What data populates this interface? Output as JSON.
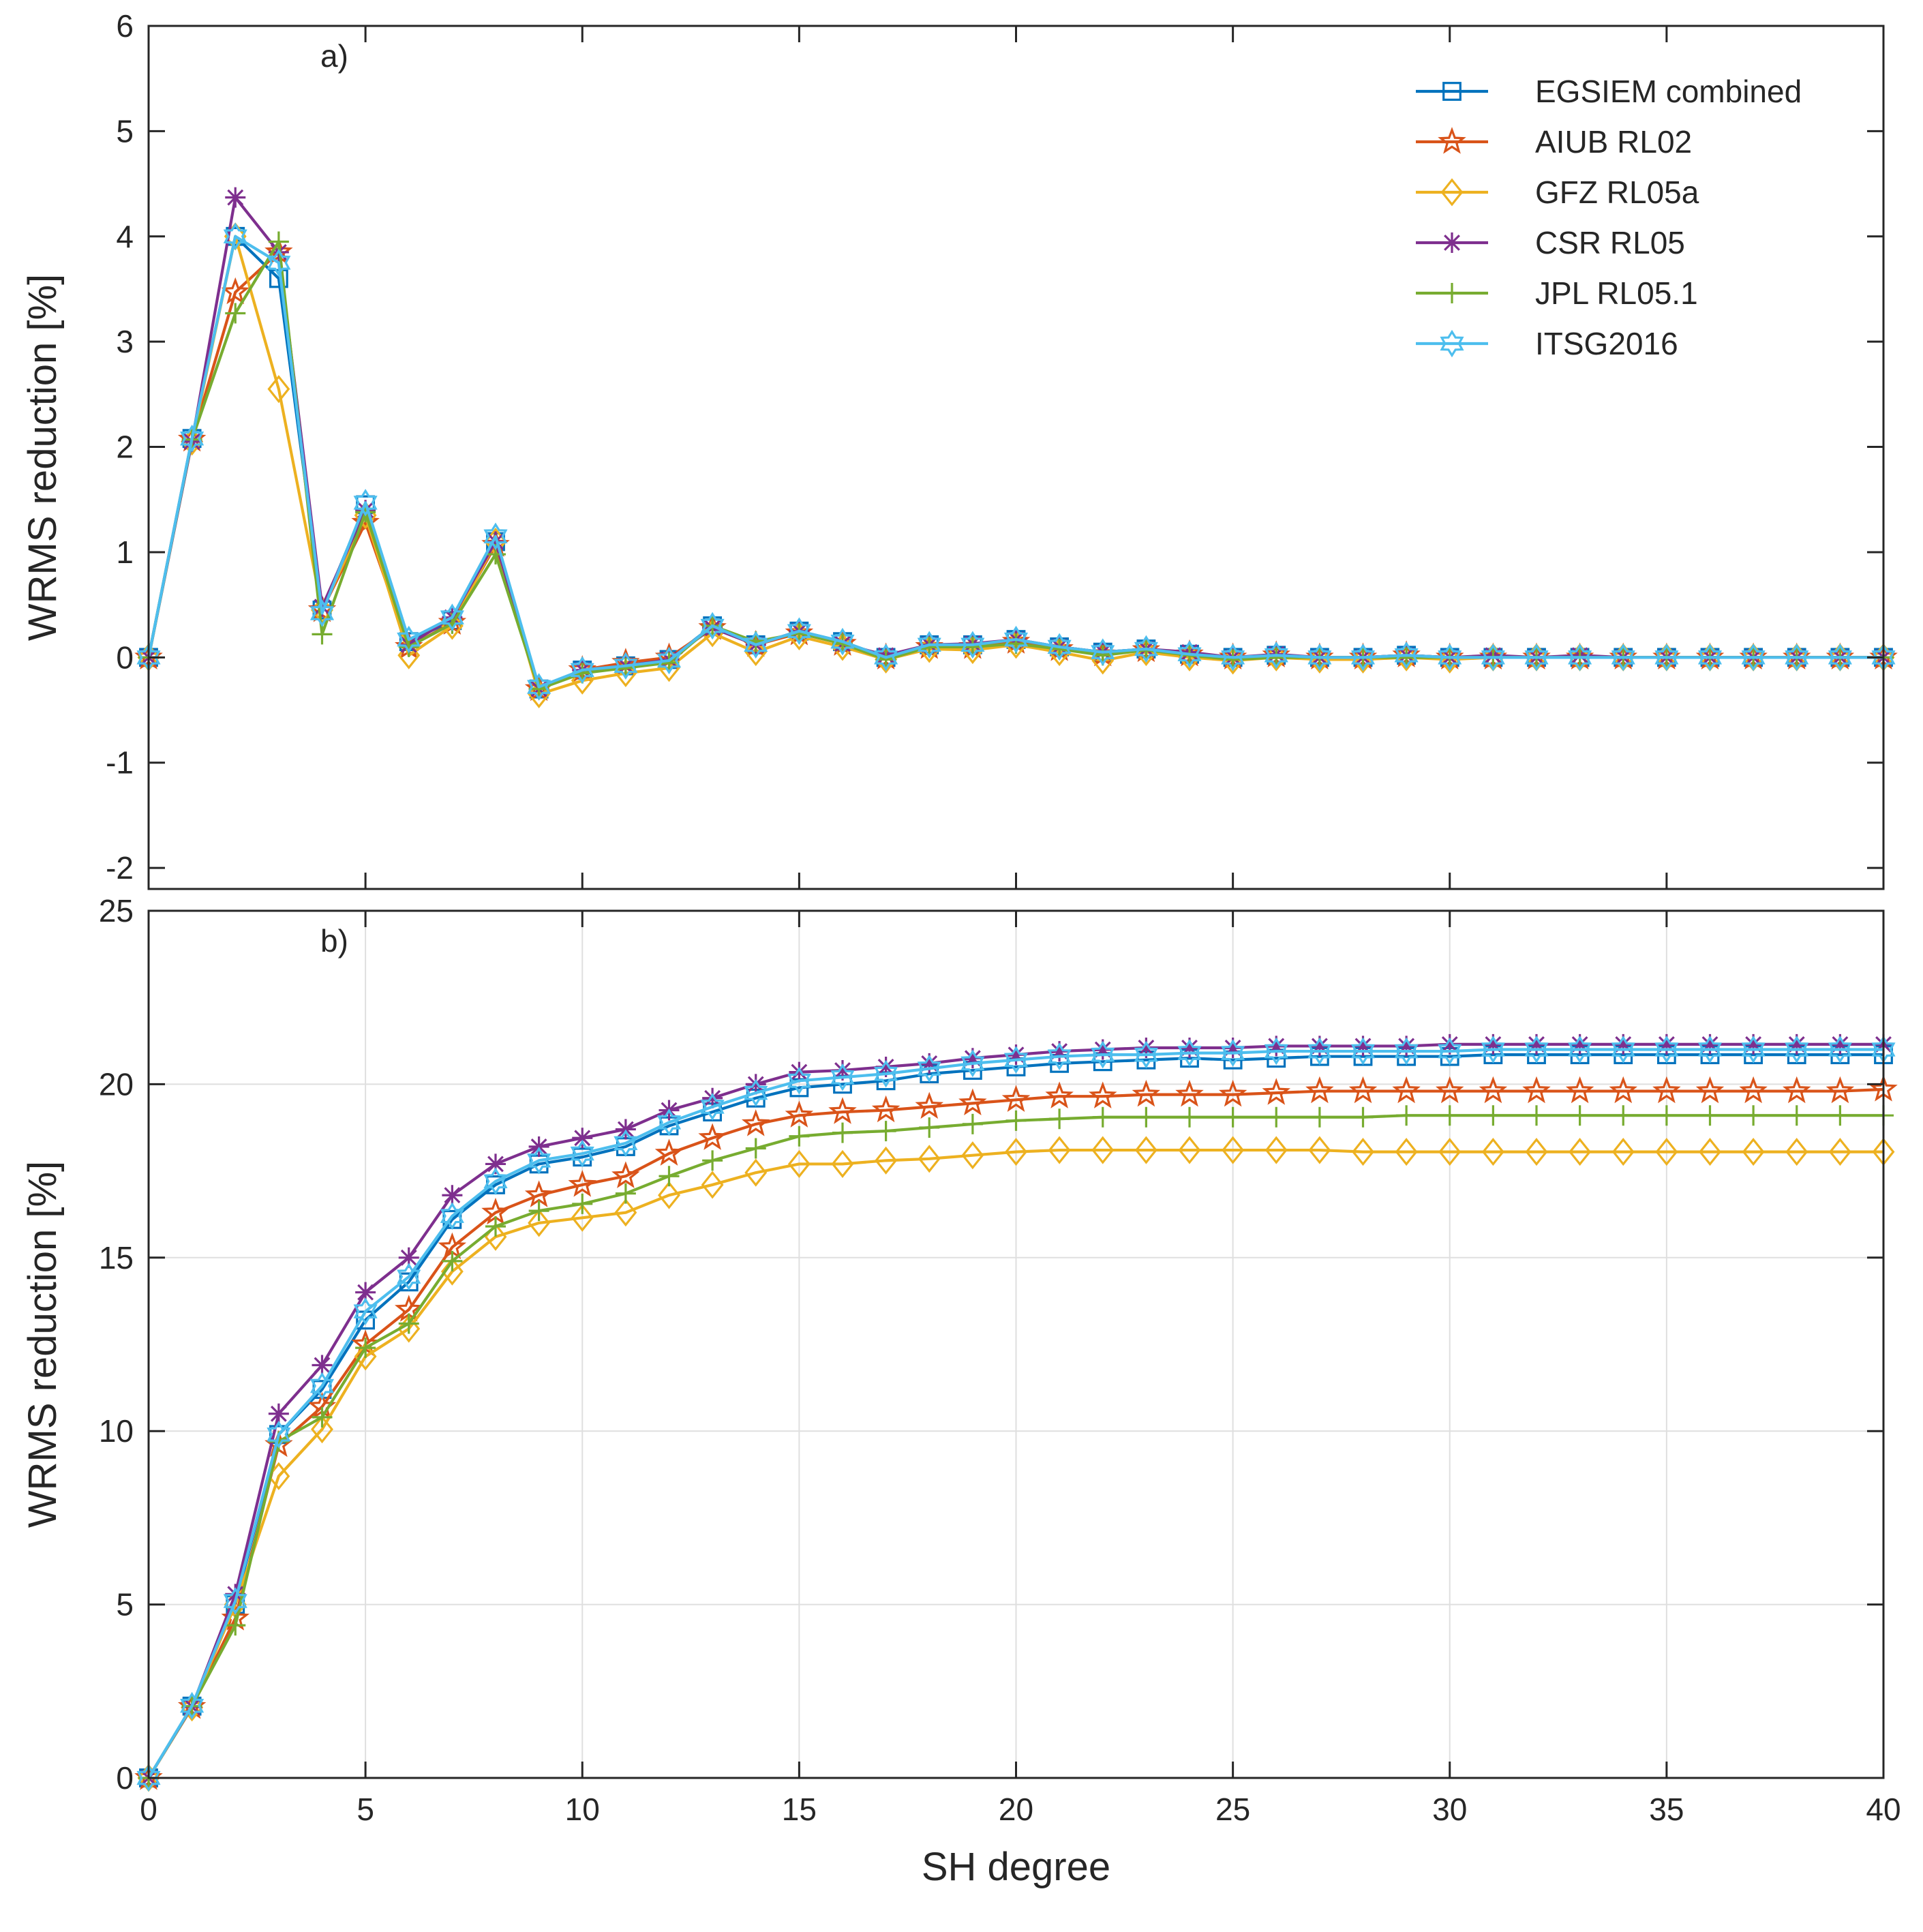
{
  "chart_data": [
    {
      "type": "line",
      "panel_label": "a)",
      "title": "",
      "xlabel": "",
      "ylabel": "WRMS reduction [%]",
      "xlim": [
        0,
        40
      ],
      "ylim": [
        -2.2,
        6
      ],
      "xticks": [
        0,
        5,
        10,
        15,
        20,
        25,
        30,
        35,
        40
      ],
      "xtick_labels": [
        "0",
        "5",
        "10",
        "15",
        "20",
        "25",
        "30",
        "35",
        "40"
      ],
      "show_xtick_labels": false,
      "yticks": [
        -2,
        -1,
        0,
        1,
        2,
        3,
        4,
        5,
        6
      ],
      "ytick_labels": [
        "-2",
        "-1",
        "0",
        "1",
        "2",
        "3",
        "4",
        "5",
        "6"
      ],
      "grid": false,
      "legend": {
        "position": "top-right",
        "entries": [
          "EGSIEM combined",
          "AIUB RL02",
          "GFZ RL05a",
          "CSR RL05",
          "JPL RL05.1",
          "ITSG2016"
        ]
      },
      "x": [
        0,
        1,
        2,
        3,
        4,
        5,
        6,
        7,
        8,
        9,
        10,
        11,
        12,
        13,
        14,
        15,
        16,
        17,
        18,
        19,
        20,
        21,
        22,
        23,
        24,
        25,
        26,
        27,
        28,
        29,
        30,
        31,
        32,
        33,
        34,
        35,
        36,
        37,
        38,
        39,
        40
      ],
      "series": [
        {
          "name": "EGSIEM combined",
          "color": "#0072BD",
          "marker": "square",
          "values": [
            0,
            2.08,
            4.0,
            3.6,
            0.45,
            1.45,
            0.15,
            0.35,
            1.1,
            -0.3,
            -0.12,
            -0.08,
            -0.02,
            0.3,
            0.12,
            0.25,
            0.15,
            0.0,
            0.12,
            0.12,
            0.17,
            0.1,
            0.05,
            0.08,
            0.03,
            0.0,
            0.02,
            0.0,
            0.0,
            0.02,
            0.0,
            0.0,
            0.0,
            0.0,
            0.0,
            0.0,
            0.0,
            0.0,
            0.0,
            0.0,
            0.0
          ]
        },
        {
          "name": "AIUB RL02",
          "color": "#D95319",
          "marker": "star",
          "values": [
            0,
            2.07,
            3.47,
            3.85,
            0.45,
            1.28,
            0.1,
            0.33,
            1.07,
            -0.3,
            -0.12,
            -0.05,
            0.0,
            0.28,
            0.12,
            0.23,
            0.13,
            0.0,
            0.1,
            0.1,
            0.15,
            0.08,
            0.03,
            0.07,
            0.03,
            0.0,
            0.02,
            0.0,
            0.0,
            0.02,
            0.0,
            0.0,
            0.0,
            0.0,
            0.0,
            0.0,
            0.0,
            0.0,
            0.0,
            0.0,
            0.0
          ]
        },
        {
          "name": "GFZ RL05a",
          "color": "#EDB120",
          "marker": "diamond",
          "values": [
            0,
            2.05,
            4.0,
            2.55,
            0.45,
            1.35,
            0.02,
            0.3,
            1.1,
            -0.35,
            -0.22,
            -0.15,
            -0.1,
            0.23,
            0.05,
            0.2,
            0.1,
            -0.02,
            0.08,
            0.07,
            0.12,
            0.05,
            -0.03,
            0.05,
            0.0,
            -0.03,
            0.0,
            -0.02,
            -0.02,
            0.0,
            -0.02,
            0.0,
            0.0,
            0.0,
            0.0,
            0.0,
            0.0,
            0.0,
            0.0,
            0.0,
            0.0
          ]
        },
        {
          "name": "CSR RL05",
          "color": "#7E2F8E",
          "marker": "asterisk",
          "values": [
            0,
            2.05,
            4.37,
            3.85,
            0.48,
            1.4,
            0.12,
            0.38,
            1.1,
            -0.3,
            -0.12,
            -0.08,
            -0.02,
            0.28,
            0.12,
            0.25,
            0.13,
            0.02,
            0.12,
            0.13,
            0.17,
            0.1,
            0.05,
            0.08,
            0.05,
            0.0,
            0.03,
            0.0,
            0.0,
            0.02,
            0.0,
            0.02,
            0.0,
            0.02,
            0.0,
            0.0,
            0.0,
            0.0,
            0.0,
            0.0,
            0.0
          ]
        },
        {
          "name": "JPL RL05.1",
          "color": "#77AC30",
          "marker": "plus",
          "values": [
            0,
            2.07,
            3.27,
            3.95,
            0.22,
            1.38,
            0.1,
            0.32,
            0.98,
            -0.3,
            -0.15,
            -0.1,
            -0.05,
            0.3,
            0.15,
            0.23,
            0.13,
            -0.02,
            0.1,
            0.1,
            0.13,
            0.08,
            0.02,
            0.07,
            0.02,
            -0.02,
            0.0,
            0.0,
            0.0,
            0.0,
            0.0,
            0.0,
            0.0,
            0.0,
            0.0,
            0.0,
            0.0,
            0.0,
            0.0,
            0.0,
            0.0
          ]
        },
        {
          "name": "ITSG2016",
          "color": "#4DBEEE",
          "marker": "hexagram",
          "values": [
            0,
            2.08,
            4.0,
            3.75,
            0.42,
            1.47,
            0.17,
            0.38,
            1.15,
            -0.28,
            -0.12,
            -0.08,
            -0.03,
            0.3,
            0.12,
            0.25,
            0.15,
            0.0,
            0.12,
            0.12,
            0.17,
            0.1,
            0.05,
            0.08,
            0.03,
            0.0,
            0.02,
            0.0,
            0.0,
            0.02,
            0.0,
            0.0,
            0.0,
            0.0,
            0.0,
            0.0,
            0.0,
            0.0,
            0.0,
            0.0,
            0.0
          ]
        }
      ]
    },
    {
      "type": "line",
      "panel_label": "b)",
      "title": "",
      "xlabel": "SH degree",
      "ylabel": "WRMS reduction [%]",
      "xlim": [
        0,
        40
      ],
      "ylim": [
        0,
        25
      ],
      "xticks": [
        0,
        5,
        10,
        15,
        20,
        25,
        30,
        35,
        40
      ],
      "xtick_labels": [
        "0",
        "5",
        "10",
        "15",
        "20",
        "25",
        "30",
        "35",
        "40"
      ],
      "show_xtick_labels": true,
      "yticks": [
        0,
        5,
        10,
        15,
        20,
        25
      ],
      "ytick_labels": [
        "0",
        "5",
        "10",
        "15",
        "20",
        "25"
      ],
      "grid": true,
      "x": [
        0,
        1,
        2,
        3,
        4,
        5,
        6,
        7,
        8,
        9,
        10,
        11,
        12,
        13,
        14,
        15,
        16,
        17,
        18,
        19,
        20,
        21,
        22,
        23,
        24,
        25,
        26,
        27,
        28,
        29,
        30,
        31,
        32,
        33,
        34,
        35,
        36,
        37,
        38,
        39,
        40
      ],
      "series": [
        {
          "name": "EGSIEM combined",
          "color": "#0072BD",
          "marker": "square",
          "values": [
            0,
            2.07,
            5.0,
            9.9,
            11.2,
            13.2,
            14.3,
            16.1,
            17.1,
            17.7,
            17.9,
            18.2,
            18.8,
            19.2,
            19.6,
            19.9,
            20.0,
            20.1,
            20.3,
            20.4,
            20.5,
            20.6,
            20.65,
            20.7,
            20.75,
            20.7,
            20.75,
            20.8,
            20.8,
            20.8,
            20.8,
            20.85,
            20.85,
            20.85,
            20.85,
            20.85,
            20.85,
            20.85,
            20.85,
            20.85,
            20.85
          ]
        },
        {
          "name": "AIUB RL02",
          "color": "#D95319",
          "marker": "star",
          "values": [
            0,
            2.05,
            4.6,
            9.6,
            10.7,
            12.5,
            13.5,
            15.3,
            16.3,
            16.8,
            17.1,
            17.35,
            18.0,
            18.45,
            18.85,
            19.1,
            19.2,
            19.25,
            19.35,
            19.45,
            19.55,
            19.65,
            19.65,
            19.7,
            19.7,
            19.7,
            19.75,
            19.8,
            19.8,
            19.8,
            19.8,
            19.8,
            19.8,
            19.8,
            19.8,
            19.8,
            19.8,
            19.8,
            19.8,
            19.8,
            19.85
          ]
        },
        {
          "name": "GFZ RL05a",
          "color": "#EDB120",
          "marker": "diamond",
          "values": [
            0,
            2.03,
            5.0,
            8.7,
            10.05,
            12.15,
            12.95,
            14.6,
            15.6,
            16.0,
            16.15,
            16.3,
            16.8,
            17.1,
            17.45,
            17.7,
            17.7,
            17.8,
            17.85,
            17.95,
            18.05,
            18.1,
            18.1,
            18.1,
            18.1,
            18.1,
            18.1,
            18.1,
            18.05,
            18.05,
            18.05,
            18.05,
            18.05,
            18.05,
            18.05,
            18.05,
            18.05,
            18.05,
            18.05,
            18.05,
            18.05
          ]
        },
        {
          "name": "CSR RL05",
          "color": "#7E2F8E",
          "marker": "asterisk",
          "values": [
            0,
            2.05,
            5.3,
            10.5,
            11.9,
            14.0,
            15.0,
            16.8,
            17.7,
            18.2,
            18.45,
            18.7,
            19.25,
            19.6,
            20.0,
            20.35,
            20.4,
            20.5,
            20.6,
            20.75,
            20.85,
            20.95,
            21.0,
            21.05,
            21.05,
            21.05,
            21.1,
            21.1,
            21.1,
            21.1,
            21.15,
            21.15,
            21.15,
            21.15,
            21.15,
            21.15,
            21.15,
            21.15,
            21.15,
            21.15,
            21.15
          ]
        },
        {
          "name": "JPL RL05.1",
          "color": "#77AC30",
          "marker": "plus",
          "values": [
            0,
            2.07,
            4.4,
            9.7,
            10.4,
            12.4,
            13.1,
            14.9,
            15.9,
            16.35,
            16.55,
            16.85,
            17.35,
            17.8,
            18.15,
            18.5,
            18.6,
            18.65,
            18.75,
            18.85,
            18.95,
            19.0,
            19.05,
            19.05,
            19.05,
            19.05,
            19.05,
            19.05,
            19.05,
            19.1,
            19.1,
            19.1,
            19.1,
            19.1,
            19.1,
            19.1,
            19.1,
            19.1,
            19.1,
            19.1,
            19.1
          ]
        },
        {
          "name": "ITSG2016",
          "color": "#4DBEEE",
          "marker": "hexagram",
          "values": [
            0,
            2.08,
            5.1,
            9.9,
            11.3,
            13.45,
            14.45,
            16.2,
            17.2,
            17.8,
            18.0,
            18.3,
            18.9,
            19.35,
            19.75,
            20.1,
            20.2,
            20.3,
            20.45,
            20.6,
            20.7,
            20.8,
            20.85,
            20.85,
            20.9,
            20.9,
            20.95,
            20.95,
            20.95,
            20.95,
            20.95,
            21.0,
            21.0,
            21.0,
            21.0,
            21.0,
            21.0,
            21.0,
            21.0,
            21.0,
            21.0
          ]
        }
      ]
    }
  ]
}
